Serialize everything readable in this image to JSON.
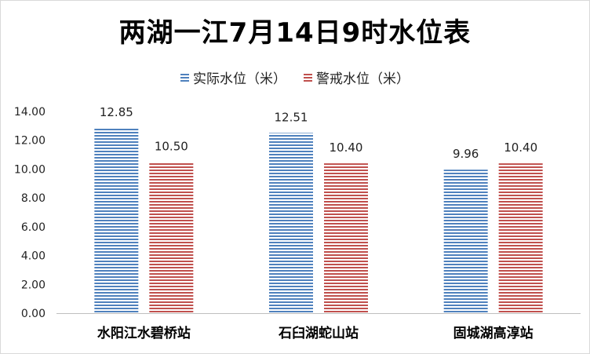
{
  "chart_data": {
    "type": "bar",
    "title": "两湖一江7月14日9时水位表",
    "xlabel": "",
    "ylabel": "",
    "categories": [
      "水阳江水碧桥站",
      "石臼湖蛇山站",
      "固城湖高淳站"
    ],
    "series": [
      {
        "name": "实际水位（米）",
        "values": [
          12.85,
          12.51,
          9.96
        ],
        "labels": [
          "12.85",
          "12.51",
          "9.96"
        ],
        "color": "#4f81bd"
      },
      {
        "name": "警戒水位（米）",
        "values": [
          10.5,
          10.4,
          10.4
        ],
        "labels": [
          "10.50",
          "10.40",
          "10.40"
        ],
        "color": "#c0504d"
      }
    ],
    "ylim": [
      0,
      14
    ],
    "yticks": [
      "0.00",
      "2.00",
      "4.00",
      "6.00",
      "8.00",
      "10.00",
      "12.00",
      "14.00"
    ],
    "legend_position": "top",
    "grid": false
  }
}
